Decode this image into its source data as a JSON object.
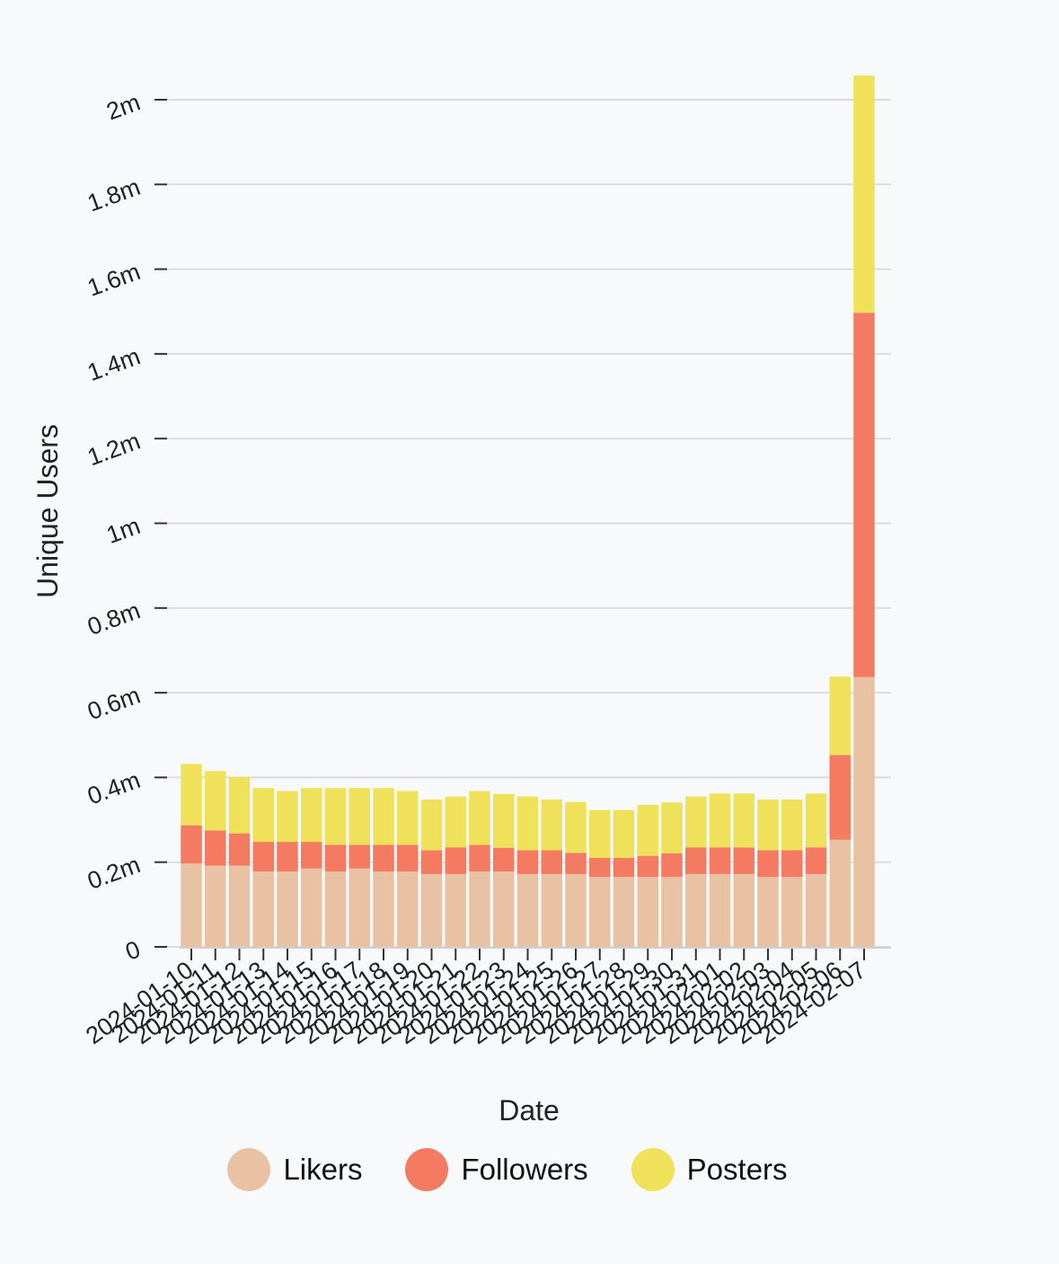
{
  "chart_data": {
    "type": "bar",
    "stacked": true,
    "xlabel": "Date",
    "ylabel": "Unique Users",
    "ylim": [
      0,
      2060000
    ],
    "yticks": [
      0,
      200000,
      400000,
      600000,
      800000,
      1000000,
      1200000,
      1400000,
      1600000,
      1800000,
      2000000
    ],
    "ytick_labels": [
      "0",
      "0.2m",
      "0.4m",
      "0.6m",
      "0.8m",
      "1m",
      "1.2m",
      "1.4m",
      "1.6m",
      "1.8m",
      "2m"
    ],
    "grid": true,
    "legend_position": "bottom",
    "categories": [
      "2024-01-10",
      "2024-01-11",
      "2024-01-12",
      "2024-01-13",
      "2024-01-14",
      "2024-01-15",
      "2024-01-16",
      "2024-01-17",
      "2024-01-18",
      "2024-01-19",
      "2024-01-20",
      "2024-01-21",
      "2024-01-22",
      "2024-01-23",
      "2024-01-24",
      "2024-01-25",
      "2024-01-26",
      "2024-01-27",
      "2024-01-28",
      "2024-01-29",
      "2024-01-30",
      "2024-01-31",
      "2024-02-01",
      "2024-02-02",
      "2024-02-03",
      "2024-02-04",
      "2024-02-05",
      "2024-02-06",
      "2024-02-07"
    ],
    "series": [
      {
        "name": "Likers",
        "color": "#e8c2a2",
        "values": [
          197000,
          192000,
          192000,
          178000,
          178000,
          185000,
          178000,
          185000,
          178000,
          178000,
          172000,
          172000,
          178000,
          178000,
          172000,
          172000,
          172000,
          165000,
          165000,
          165000,
          165000,
          172000,
          172000,
          172000,
          165000,
          165000,
          172000,
          253000,
          637000
        ]
      },
      {
        "name": "Followers",
        "color": "#f47a62",
        "values": [
          90000,
          83000,
          76000,
          70000,
          70000,
          63000,
          63000,
          56000,
          63000,
          63000,
          56000,
          63000,
          63000,
          56000,
          56000,
          56000,
          50000,
          45000,
          45000,
          50000,
          56000,
          63000,
          63000,
          63000,
          63000,
          63000,
          63000,
          200000,
          860000
        ]
      },
      {
        "name": "Posters",
        "color": "#f0e15a",
        "values": [
          145000,
          140000,
          133000,
          127000,
          120000,
          127000,
          134000,
          134000,
          134000,
          127000,
          120000,
          120000,
          127000,
          127000,
          127000,
          120000,
          120000,
          113000,
          113000,
          120000,
          120000,
          120000,
          127000,
          127000,
          120000,
          120000,
          127000,
          185000,
          560000
        ]
      }
    ]
  }
}
